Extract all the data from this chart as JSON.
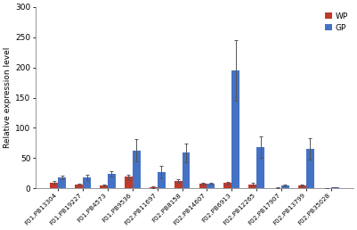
{
  "categories": [
    "F01.PB13304",
    "F01.PB19227",
    "F01.PB4573",
    "F01.PB9536",
    "F02.PB11697",
    "F02.PB8158",
    "F02.PB14607",
    "F02.PB6913",
    "F02.PB12265",
    "F02.PB17907",
    "F02.PB13799",
    "F02.PB35028"
  ],
  "WP_values": [
    10,
    6,
    5,
    19,
    2,
    13,
    8,
    9,
    7,
    1,
    5,
    1
  ],
  "GP_values": [
    18,
    18,
    24,
    63,
    27,
    59,
    8,
    195,
    68,
    5,
    65,
    2
  ],
  "WP_errors": [
    2,
    1.5,
    1,
    4,
    1,
    3,
    2,
    2,
    2,
    0.5,
    1.5,
    0.3
  ],
  "GP_errors": [
    3,
    4,
    5,
    18,
    10,
    15,
    2,
    50,
    18,
    1,
    18,
    0.5
  ],
  "WP_color": "#c0392b",
  "GP_color": "#4472c4",
  "ylabel": "Relative expression level",
  "ylim": [
    0,
    300
  ],
  "yticks": [
    0,
    50,
    100,
    150,
    200,
    250,
    300
  ],
  "bar_width": 0.32,
  "legend_labels": [
    "WP",
    "GP"
  ],
  "background_color": "#ffffff"
}
